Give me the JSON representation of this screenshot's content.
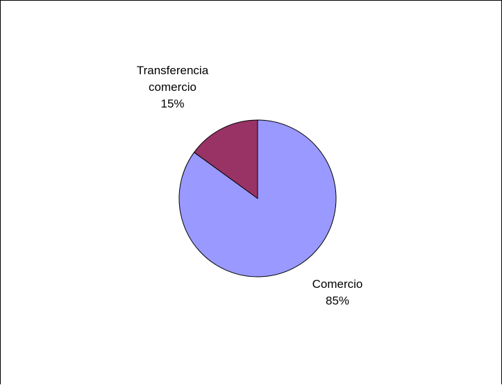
{
  "chart_data": {
    "type": "pie",
    "title": "",
    "slices": [
      {
        "label": "Comercio",
        "value": 85,
        "value_label": "85%",
        "color": "#9999ff"
      },
      {
        "label": "Transferencia comercio",
        "value": 15,
        "value_label": "15%",
        "color": "#993366"
      }
    ],
    "start_angle_deg": 0,
    "direction": "clockwise",
    "outline_color": "#000000",
    "legend": "none"
  }
}
